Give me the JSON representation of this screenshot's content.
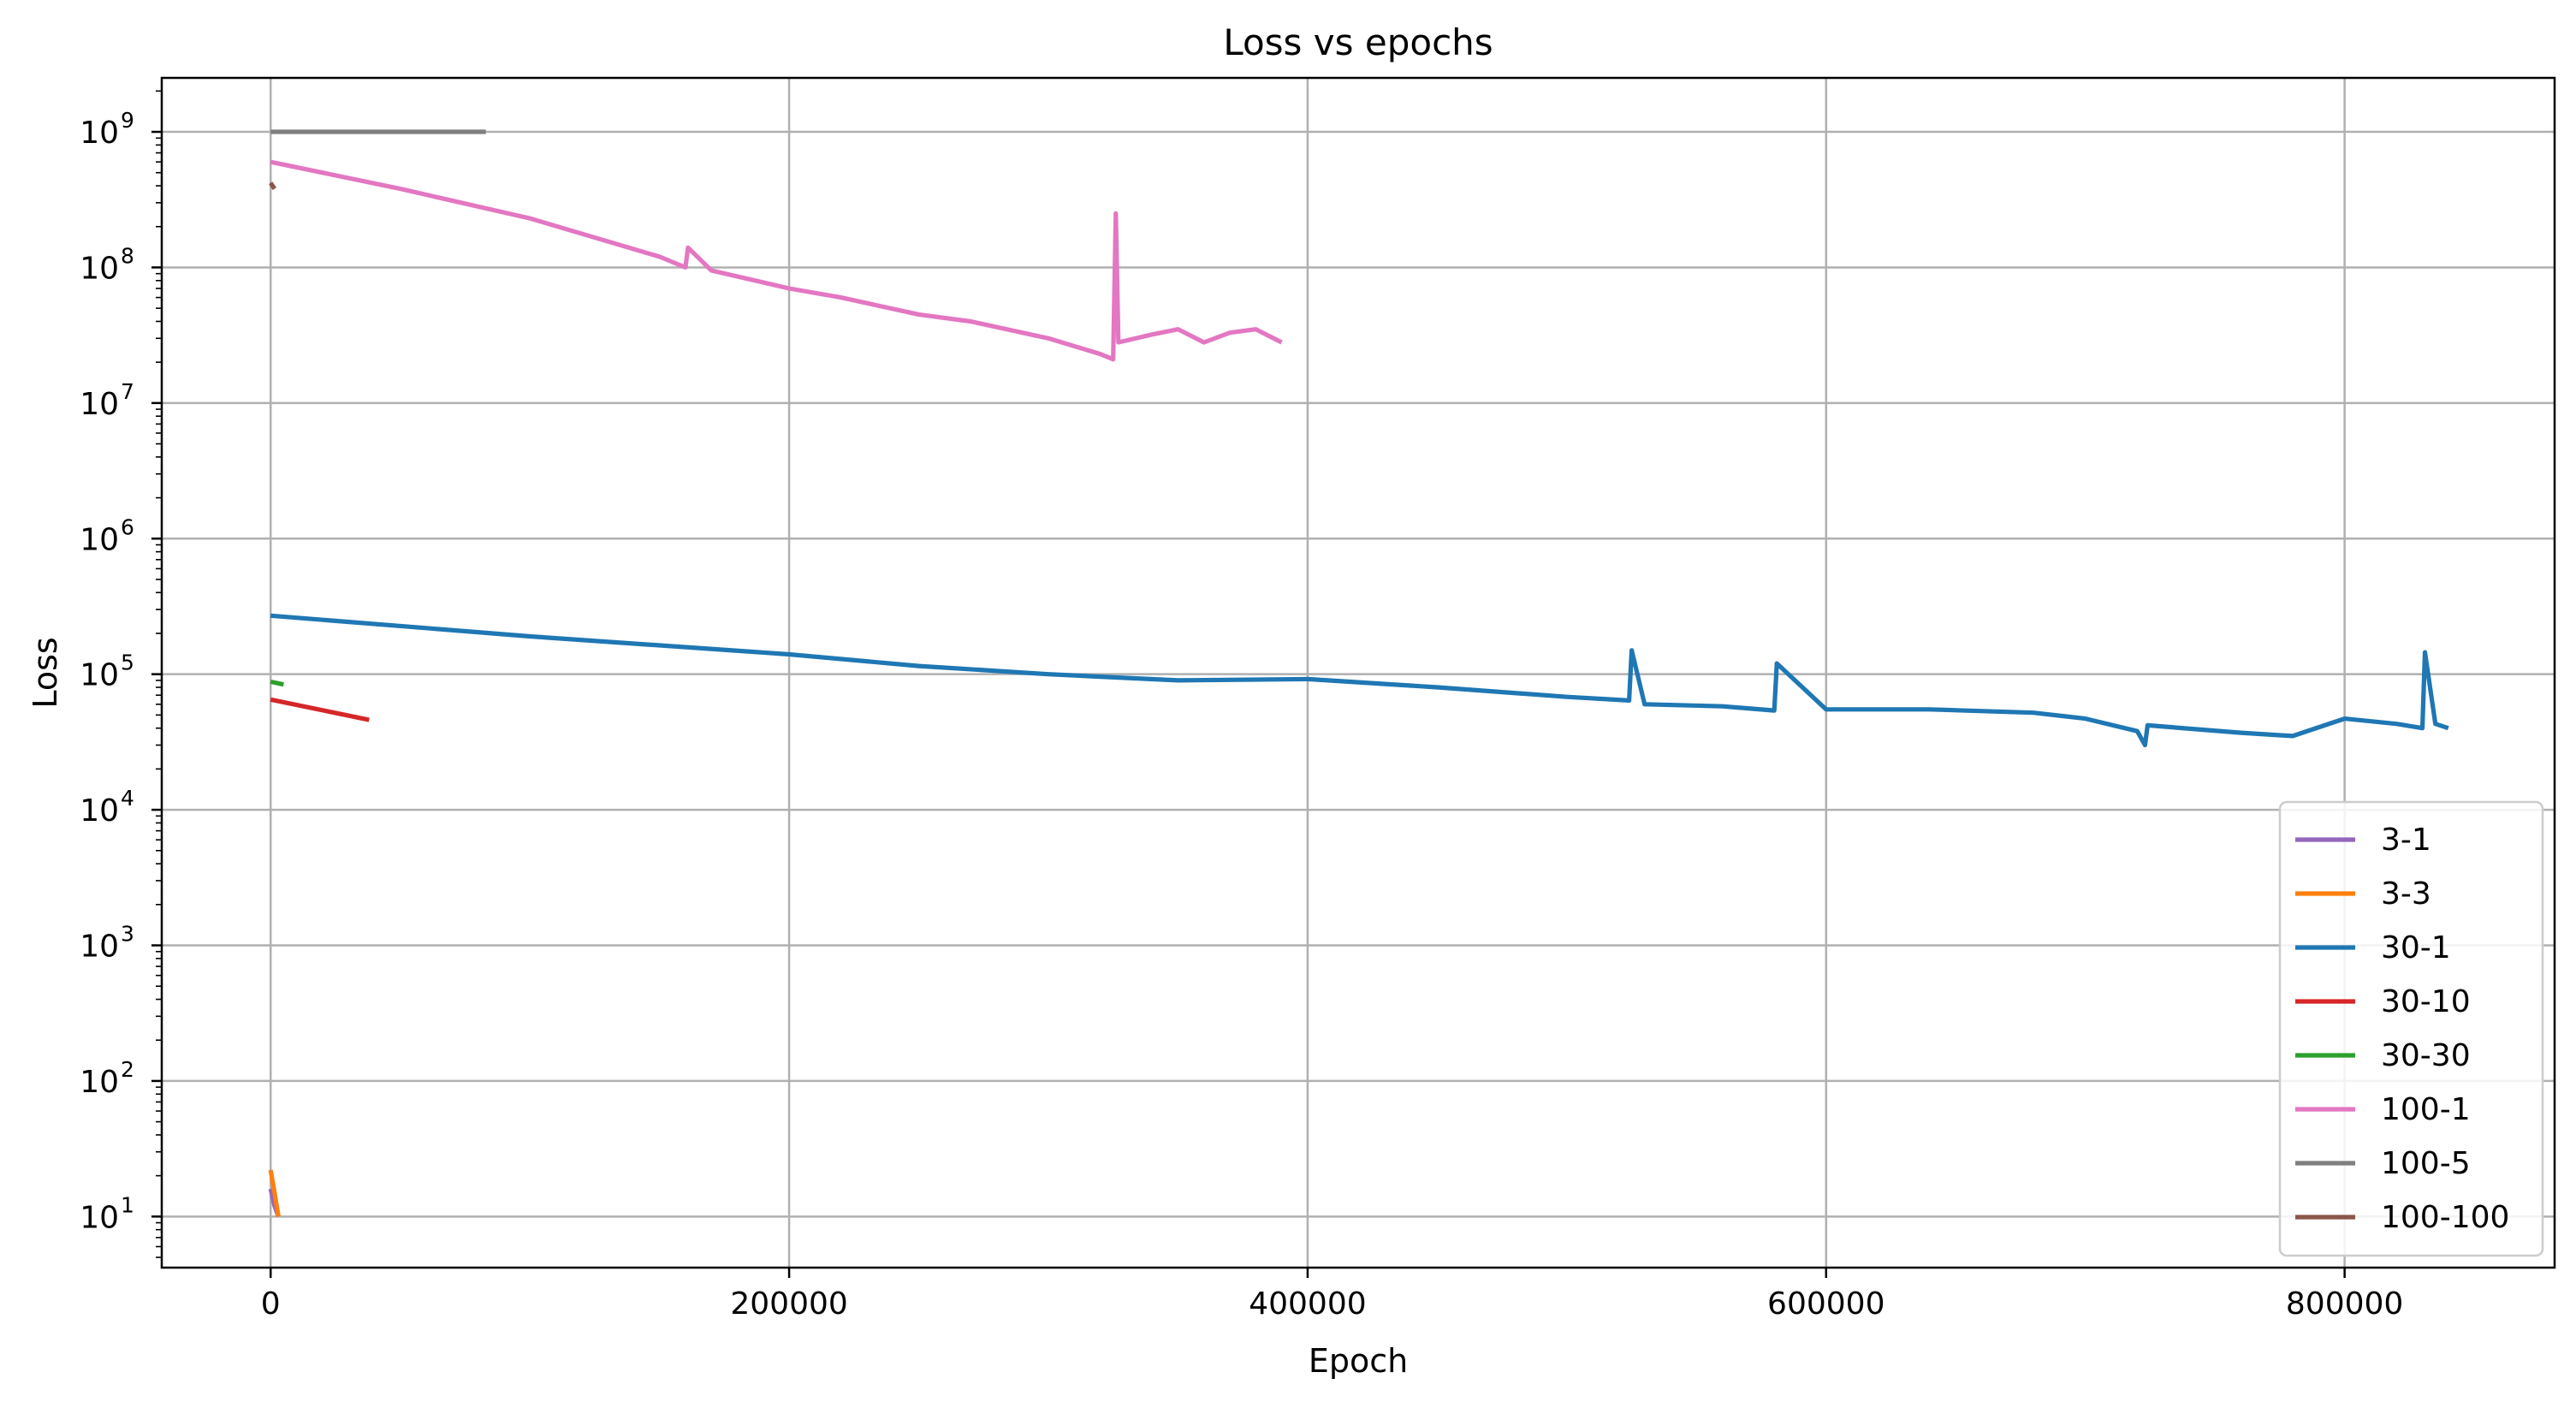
{
  "chart_data": {
    "type": "line",
    "title": "Loss vs epochs",
    "xlabel": "Epoch",
    "ylabel": "Loss",
    "xscale": "linear",
    "yscale": "log",
    "xlim": [
      -42000,
      881000
    ],
    "ylim": [
      4.2,
      2500000000.0
    ],
    "xticks": [
      0,
      200000,
      400000,
      600000,
      800000
    ],
    "xtick_labels": [
      "0",
      "200000",
      "400000",
      "600000",
      "800000"
    ],
    "yticks": [
      {
        "value": 10,
        "base": "10",
        "exp": "1"
      },
      {
        "value": 100,
        "base": "10",
        "exp": "2"
      },
      {
        "value": 1000,
        "base": "10",
        "exp": "3"
      },
      {
        "value": 10000,
        "base": "10",
        "exp": "4"
      },
      {
        "value": 100000,
        "base": "10",
        "exp": "5"
      },
      {
        "value": 1000000,
        "base": "10",
        "exp": "6"
      },
      {
        "value": 10000000,
        "base": "10",
        "exp": "7"
      },
      {
        "value": 100000000,
        "base": "10",
        "exp": "8"
      },
      {
        "value": 1000000000,
        "base": "10",
        "exp": "9"
      }
    ],
    "grid": true,
    "legend_position": "lower-right",
    "series": [
      {
        "name": "3-1",
        "color": "#9467bd",
        "x": [
          0,
          1500,
          3000
        ],
        "y": [
          16,
          12,
          10
        ]
      },
      {
        "name": "3-3",
        "color": "#ff7f0e",
        "x": [
          0,
          1500,
          3000
        ],
        "y": [
          22,
          15,
          10
        ]
      },
      {
        "name": "30-1",
        "color": "#1f77b4",
        "x": [
          0,
          100000,
          200000,
          250000,
          300000,
          350000,
          400000,
          450000,
          500000,
          524000,
          525000,
          530000,
          560000,
          580000,
          581000,
          600000,
          640000,
          680000,
          700000,
          720000,
          723000,
          724000,
          760000,
          780000,
          800000,
          820000,
          830000,
          831000,
          835000,
          840000
        ],
        "y": [
          270000,
          190000,
          140000,
          115000,
          100000,
          90000,
          92000,
          80000,
          68000,
          64000,
          150000,
          60000,
          58000,
          54000,
          120000,
          55000,
          55000,
          52000,
          47000,
          38000,
          30000,
          42000,
          37000,
          35000,
          47000,
          43000,
          40000,
          145000,
          43000,
          40000
        ]
      },
      {
        "name": "30-10",
        "color": "#d62728",
        "x": [
          0,
          38000
        ],
        "y": [
          65000,
          46000
        ]
      },
      {
        "name": "30-30",
        "color": "#2ca02c",
        "x": [
          0,
          5000
        ],
        "y": [
          88000,
          84000
        ]
      },
      {
        "name": "100-1",
        "color": "#e377c2",
        "x": [
          0,
          50000,
          100000,
          150000,
          160000,
          161000,
          170000,
          200000,
          220000,
          250000,
          270000,
          300000,
          320000,
          325000,
          326000,
          327000,
          340000,
          350000,
          360000,
          370000,
          380000,
          390000
        ],
        "y": [
          600000000,
          380000000,
          230000000,
          120000000,
          100000000,
          140000000,
          95000000,
          70000000,
          60000000,
          45000000,
          40000000,
          30000000,
          23000000,
          21000000,
          250000000,
          28000000,
          32000000,
          35000000,
          28000000,
          33000000,
          35000000,
          28000000
        ]
      },
      {
        "name": "100-5",
        "color": "#7f7f7f",
        "x": [
          0,
          83000
        ],
        "y": [
          1000000000,
          1000000000
        ]
      },
      {
        "name": "100-100",
        "color": "#8c564b",
        "x": [
          0,
          1500
        ],
        "y": [
          420000000,
          380000000
        ]
      }
    ]
  }
}
